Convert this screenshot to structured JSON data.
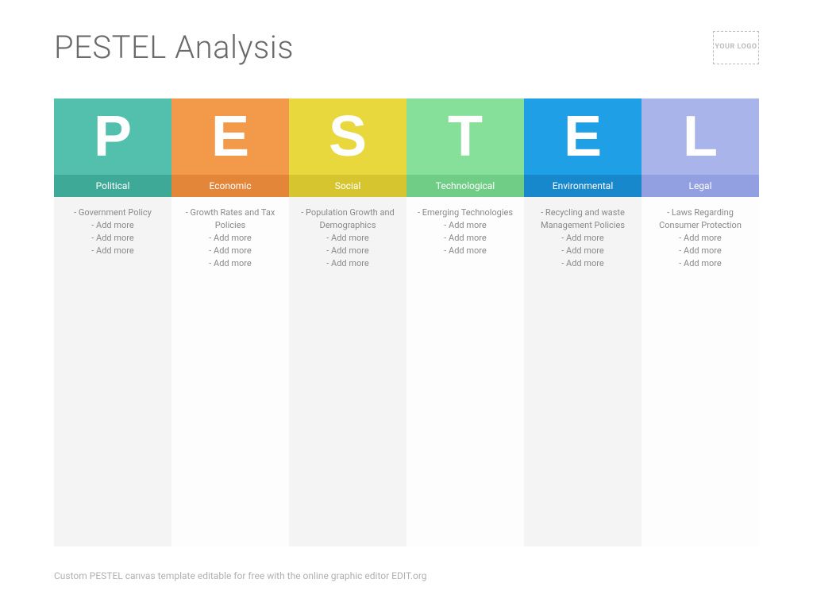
{
  "title": "PESTEL Analysis",
  "logo_text": "YOUR\nLOGO",
  "footer_text": "Custom PESTEL canvas template editable for free with the online graphic editor EDIT.org",
  "styling": {
    "page_bg": "#ffffff",
    "title_color": "#6a6a6a",
    "title_fontsize": 40,
    "title_fontweight": 300,
    "letter_fontsize": 72,
    "letter_color": "#ffffff",
    "label_fontsize": 12,
    "label_color": "#ffffff",
    "item_fontsize": 11,
    "item_color": "#898989",
    "footer_color": "#b0b0b0",
    "logo_border_color": "#bcbcbc",
    "body_bg_odd": "#f4f4f4",
    "body_bg_even": "#fdfdfd",
    "column_count": 6,
    "letter_row_height": 96,
    "label_row_height": 28
  },
  "columns": [
    {
      "letter": "P",
      "label": "Political",
      "letter_bg": "#53bfad",
      "label_bg": "#3fa998",
      "body_bg": "#f4f4f4",
      "items": [
        "- Government Policy",
        "- Add more",
        "- Add more",
        "- Add more"
      ]
    },
    {
      "letter": "E",
      "label": "Economic",
      "letter_bg": "#f2994a",
      "label_bg": "#e4863a",
      "body_bg": "#fdfdfd",
      "items": [
        "- Growth Rates and Tax Policies",
        "- Add more",
        "- Add more",
        "- Add more"
      ]
    },
    {
      "letter": "S",
      "label": "Social",
      "letter_bg": "#e9d73e",
      "label_bg": "#d6c52f",
      "body_bg": "#f4f4f4",
      "items": [
        "- Population Growth and Demographics",
        "- Add more",
        "- Add more",
        "- Add more"
      ]
    },
    {
      "letter": "T",
      "label": "Technological",
      "letter_bg": "#86e09a",
      "label_bg": "#6fcd85",
      "body_bg": "#fdfdfd",
      "items": [
        "- Emerging Technologies",
        "- Add more",
        "- Add more",
        "- Add more"
      ]
    },
    {
      "letter": "E",
      "label": "Environmental",
      "letter_bg": "#1f9fe6",
      "label_bg": "#1888cc",
      "body_bg": "#f4f4f4",
      "items": [
        "- Recycling and waste Management Policies",
        "- Add more",
        "- Add more",
        "- Add more"
      ]
    },
    {
      "letter": "L",
      "label": "Legal",
      "letter_bg": "#a9b4eb",
      "label_bg": "#929fe0",
      "body_bg": "#fdfdfd",
      "items": [
        "- Laws Regarding Consumer Protection",
        "- Add more",
        "- Add more",
        "- Add more"
      ]
    }
  ]
}
